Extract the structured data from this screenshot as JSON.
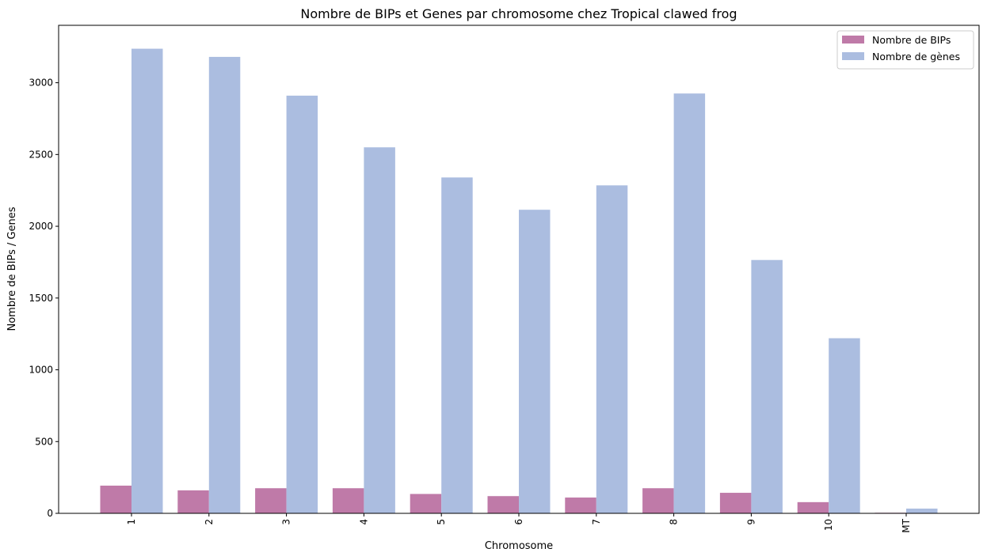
{
  "chart_data": {
    "type": "bar",
    "title": "Nombre de BIPs et Genes par chromosome chez Tropical clawed frog",
    "xlabel": "Chromosome",
    "ylabel": "Nombre de BIPs / Genes",
    "categories": [
      "1",
      "2",
      "3",
      "4",
      "5",
      "6",
      "7",
      "8",
      "9",
      "10",
      "MT"
    ],
    "ylim": [
      0,
      3400
    ],
    "yticks": [
      0,
      500,
      1000,
      1500,
      2000,
      2500,
      3000
    ],
    "grid": false,
    "legend_position": "top-right",
    "series": [
      {
        "name": "Nombre de BIPs",
        "color": "#bf7aa8",
        "values": [
          193,
          160,
          175,
          175,
          135,
          120,
          110,
          175,
          143,
          78,
          4
        ]
      },
      {
        "name": "Nombre de gènes",
        "color": "#abbde0",
        "values": [
          3237,
          3180,
          2910,
          2550,
          2340,
          2115,
          2285,
          2925,
          1765,
          1220,
          33
        ]
      }
    ]
  }
}
